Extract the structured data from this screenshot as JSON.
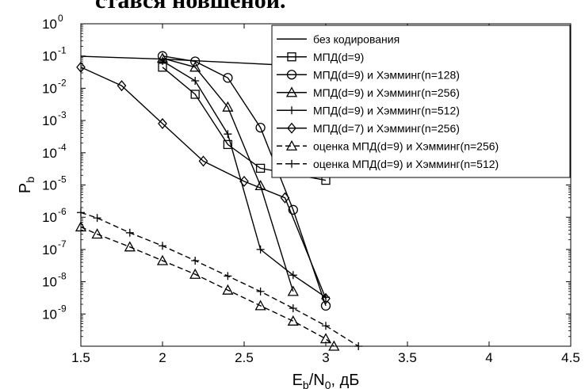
{
  "caption": "стався новшеной.",
  "chart_data": {
    "type": "line",
    "title": "",
    "xlabel": {
      "main": "E",
      "sub1": "b",
      "mid": "/N",
      "sub2": "0",
      "tail": ", дБ"
    },
    "ylabel": {
      "main": "P",
      "sub": "b"
    },
    "xlim": [
      1.5,
      4.5
    ],
    "ylim_log10": [
      -10,
      0
    ],
    "yscale": "log",
    "grid": false,
    "legend_position": "top-right",
    "x_ticks": [
      "1.5",
      "2",
      "2.5",
      "3",
      "3.5",
      "4",
      "4.5"
    ],
    "y_ticks": [
      {
        "base": "10",
        "exp": "0"
      },
      {
        "base": "10",
        "exp": "-1"
      },
      {
        "base": "10",
        "exp": "-2"
      },
      {
        "base": "10",
        "exp": "-3"
      },
      {
        "base": "10",
        "exp": "-4"
      },
      {
        "base": "10",
        "exp": "-5"
      },
      {
        "base": "10",
        "exp": "-6"
      },
      {
        "base": "10",
        "exp": "-7"
      },
      {
        "base": "10",
        "exp": "-8"
      },
      {
        "base": "10",
        "exp": "-9"
      }
    ],
    "series": [
      {
        "name": "без кодирования",
        "marker": "none",
        "dash": false,
        "points": [
          [
            1.5,
            0.098
          ],
          [
            2,
            0.08
          ],
          [
            2.5,
            0.06
          ],
          [
            3,
            0.045
          ]
        ]
      },
      {
        "name": "МПД(d=9)",
        "marker": "square",
        "dash": false,
        "points": [
          [
            2,
            0.045
          ],
          [
            2.2,
            0.0065
          ],
          [
            2.4,
            0.00018
          ],
          [
            2.6,
            3.3e-05
          ],
          [
            3,
            1.4e-05
          ]
        ]
      },
      {
        "name": "МПД(d=9) и Хэмминг(n=128)",
        "marker": "circle",
        "dash": false,
        "points": [
          [
            2,
            0.1
          ],
          [
            2.2,
            0.068
          ],
          [
            2.4,
            0.021
          ],
          [
            2.6,
            0.0006
          ],
          [
            2.8,
            1.7e-06
          ],
          [
            3,
            1.8e-09
          ]
        ]
      },
      {
        "name": "МПД(d=9) и Хэмминг(n=256)",
        "marker": "triangle",
        "dash": false,
        "points": [
          [
            2,
            0.085
          ],
          [
            2.2,
            0.045
          ],
          [
            2.4,
            0.0026
          ],
          [
            2.6,
            9.5e-06
          ],
          [
            2.8,
            5e-09
          ]
        ]
      },
      {
        "name": "МПД(d=9) и Хэмминг(n=512)",
        "marker": "plus",
        "dash": false,
        "points": [
          [
            2,
            0.07
          ],
          [
            2.2,
            0.017
          ],
          [
            2.4,
            0.00038
          ],
          [
            2.6,
            1e-07
          ],
          [
            2.8,
            1.6e-08
          ],
          [
            3,
            3.3e-09
          ]
        ]
      },
      {
        "name": "МПД(d=7) и Хэмминг(n=256)",
        "marker": "diamond",
        "dash": false,
        "points": [
          [
            1.5,
            0.045
          ],
          [
            1.75,
            0.012
          ],
          [
            2,
            0.0008
          ],
          [
            2.25,
            5.5e-05
          ],
          [
            2.5,
            1.3e-05
          ],
          [
            2.75,
            4e-06
          ],
          [
            3,
            3e-09
          ]
        ]
      },
      {
        "name": "оценка МПД(d=9) и Хэмминг(n=256)",
        "marker": "triangle",
        "dash": true,
        "points": [
          [
            1.5,
            5e-07
          ],
          [
            1.6,
            3e-07
          ],
          [
            1.8,
            1.2e-07
          ],
          [
            2,
            4.5e-08
          ],
          [
            2.2,
            1.7e-08
          ],
          [
            2.4,
            5.5e-09
          ],
          [
            2.6,
            1.8e-09
          ],
          [
            2.8,
            6e-10
          ],
          [
            3,
            1.7e-10
          ],
          [
            3.05,
            1e-10
          ]
        ]
      },
      {
        "name": "оценка МПД(d=9) и Хэмминг(n=512)",
        "marker": "plus",
        "dash": true,
        "points": [
          [
            1.5,
            1.4e-06
          ],
          [
            1.6,
            9.5e-07
          ],
          [
            1.8,
            3.3e-07
          ],
          [
            2,
            1.3e-07
          ],
          [
            2.2,
            4.5e-08
          ],
          [
            2.4,
            1.5e-08
          ],
          [
            2.6,
            5e-09
          ],
          [
            2.8,
            1.5e-09
          ],
          [
            3,
            4.3e-10
          ],
          [
            3.2,
            1e-10
          ]
        ]
      }
    ]
  }
}
